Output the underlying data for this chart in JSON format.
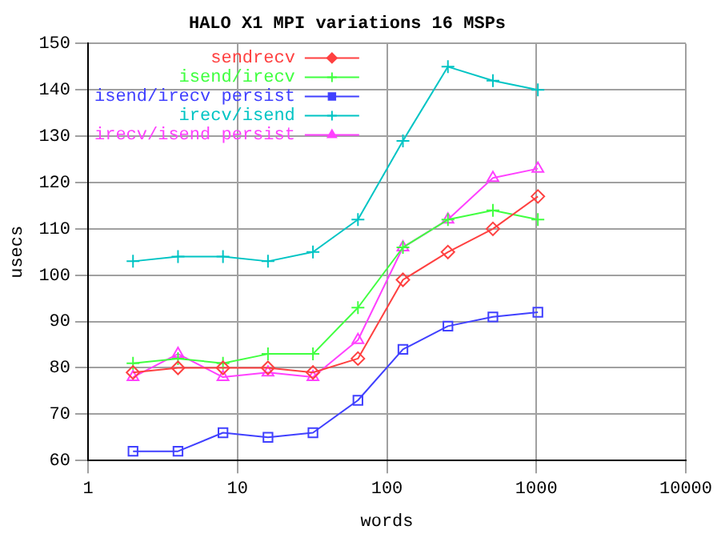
{
  "chart_data": {
    "type": "line",
    "title": "HALO X1 MPI variations 16 MSPs",
    "xlabel": "words",
    "ylabel": "usecs",
    "x": [
      2,
      4,
      8,
      16,
      32,
      64,
      128,
      256,
      512,
      1024
    ],
    "log": "x",
    "xlim": [
      1,
      10000
    ],
    "xticks": [
      1,
      10,
      100,
      1000,
      10000
    ],
    "ylim": [
      60,
      150
    ],
    "yticks": [
      60,
      70,
      80,
      90,
      100,
      110,
      120,
      130,
      140,
      150
    ],
    "grid": true,
    "legend": "top left",
    "series": [
      {
        "name": "sendrecv",
        "color": "#ff4040",
        "marker": "diamond",
        "values": [
          79,
          80,
          80,
          80,
          79,
          82,
          99,
          105,
          110,
          117
        ]
      },
      {
        "name": "isend/irecv",
        "color": "#40ff40",
        "marker": "cross",
        "values": [
          81,
          82,
          81,
          83,
          83,
          93,
          106,
          112,
          114,
          112
        ]
      },
      {
        "name": "isend/irecv persist",
        "color": "#4040ff",
        "marker": "square",
        "values": [
          62,
          62,
          66,
          65,
          66,
          73,
          84,
          89,
          91,
          92
        ]
      },
      {
        "name": "irecv/isend",
        "color": "#00c4c4",
        "marker": "cross",
        "values": [
          103,
          104,
          104,
          103,
          105,
          112,
          129,
          145,
          142,
          140
        ]
      },
      {
        "name": "irecv/isend persist",
        "color": "#ff40ff",
        "marker": "triangle",
        "values": [
          78,
          83,
          78,
          79,
          78,
          86,
          106,
          112,
          121,
          123
        ]
      }
    ]
  }
}
